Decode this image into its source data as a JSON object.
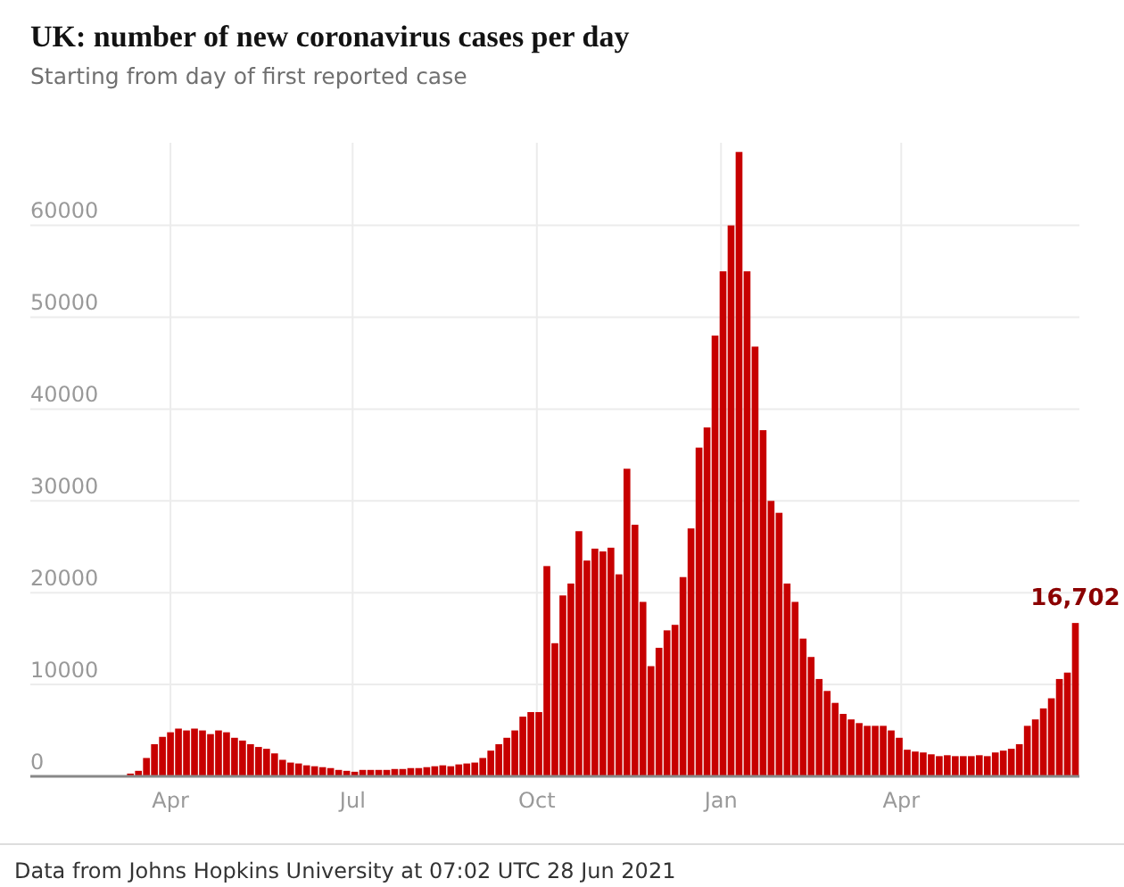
{
  "chart_data": {
    "type": "bar",
    "title": "UK: number of new coronavirus cases per day",
    "subtitle": "Starting from day of first reported case",
    "annotations": [
      {
        "text": "16,702",
        "x": "2021-06-27",
        "y": 16702
      },
      "Data from Johns Hopkins University at 07:02 UTC 28 Jun 2021"
    ],
    "x": [
      "2020-02-01",
      "2020-02-05",
      "2020-02-09",
      "2020-02-13",
      "2020-02-17",
      "2020-02-21",
      "2020-02-25",
      "2020-02-29",
      "2020-03-04",
      "2020-03-08",
      "2020-03-12",
      "2020-03-16",
      "2020-03-20",
      "2020-03-24",
      "2020-03-28",
      "2020-04-01",
      "2020-04-05",
      "2020-04-09",
      "2020-04-13",
      "2020-04-17",
      "2020-04-21",
      "2020-04-25",
      "2020-04-29",
      "2020-05-03",
      "2020-05-07",
      "2020-05-11",
      "2020-05-15",
      "2020-05-19",
      "2020-05-23",
      "2020-05-27",
      "2020-05-31",
      "2020-06-04",
      "2020-06-08",
      "2020-06-12",
      "2020-06-16",
      "2020-06-20",
      "2020-06-24",
      "2020-06-28",
      "2020-07-02",
      "2020-07-06",
      "2020-07-10",
      "2020-07-14",
      "2020-07-18",
      "2020-07-22",
      "2020-07-26",
      "2020-07-30",
      "2020-08-03",
      "2020-08-07",
      "2020-08-11",
      "2020-08-15",
      "2020-08-19",
      "2020-08-23",
      "2020-08-27",
      "2020-08-31",
      "2020-09-04",
      "2020-09-08",
      "2020-09-12",
      "2020-09-16",
      "2020-09-20",
      "2020-09-24",
      "2020-09-28",
      "2020-10-02",
      "2020-10-06",
      "2020-10-10",
      "2020-10-14",
      "2020-10-18",
      "2020-10-22",
      "2020-10-26",
      "2020-10-30",
      "2020-11-03",
      "2020-11-07",
      "2020-11-11",
      "2020-11-15",
      "2020-11-19",
      "2020-11-23",
      "2020-11-27",
      "2020-12-01",
      "2020-12-05",
      "2020-12-09",
      "2020-12-13",
      "2020-12-17",
      "2020-12-21",
      "2020-12-25",
      "2020-12-29",
      "2021-01-02",
      "2021-01-06",
      "2021-01-10",
      "2021-01-14",
      "2021-01-18",
      "2021-01-22",
      "2021-01-26",
      "2021-01-30",
      "2021-02-03",
      "2021-02-07",
      "2021-02-11",
      "2021-02-15",
      "2021-02-19",
      "2021-02-23",
      "2021-02-27",
      "2021-03-03",
      "2021-03-07",
      "2021-03-11",
      "2021-03-15",
      "2021-03-19",
      "2021-03-23",
      "2021-03-27",
      "2021-03-31",
      "2021-04-04",
      "2021-04-08",
      "2021-04-12",
      "2021-04-16",
      "2021-04-20",
      "2021-04-24",
      "2021-04-28",
      "2021-05-02",
      "2021-05-06",
      "2021-05-10",
      "2021-05-14",
      "2021-05-18",
      "2021-05-22",
      "2021-05-26",
      "2021-05-30",
      "2021-06-03",
      "2021-06-07",
      "2021-06-11",
      "2021-06-15",
      "2021-06-19",
      "2021-06-23",
      "2021-06-27"
    ],
    "values": [
      0,
      0,
      0,
      0,
      0,
      0,
      0,
      0,
      0,
      0,
      300,
      600,
      2000,
      3500,
      4300,
      4800,
      5200,
      5000,
      5200,
      5000,
      4600,
      5000,
      4800,
      4200,
      3900,
      3500,
      3200,
      3000,
      2500,
      1800,
      1500,
      1400,
      1200,
      1100,
      1000,
      900,
      700,
      600,
      500,
      700,
      700,
      700,
      700,
      800,
      800,
      900,
      900,
      1000,
      1100,
      1200,
      1100,
      1300,
      1400,
      1500,
      2000,
      2800,
      3500,
      4200,
      5000,
      6500,
      7000,
      7000,
      22900,
      14500,
      19700,
      21000,
      26700,
      23500,
      24800,
      24500,
      24900,
      22000,
      33500,
      27400,
      19000,
      12000,
      14000,
      15900,
      16500,
      21700,
      27000,
      35800,
      38000,
      48000,
      55000,
      60000,
      68000,
      55000,
      46800,
      37700,
      30000,
      28700,
      21000,
      19000,
      15000,
      13000,
      10600,
      9300,
      8000,
      6800,
      6200,
      5800,
      5500,
      5500,
      5500,
      5000,
      4200,
      2900,
      2700,
      2600,
      2400,
      2200,
      2300,
      2200,
      2200,
      2200,
      2300,
      2200,
      2600,
      2800,
      3000,
      3500,
      5500,
      6200,
      7400,
      8500,
      10600,
      11300,
      16702
    ],
    "color": "#c70000",
    "xlim": [
      "2020-01-22",
      "2021-06-29"
    ],
    "xticks": [
      {
        "value": "2020-04-01",
        "label": "Apr"
      },
      {
        "value": "2020-07-01",
        "label": "Jul"
      },
      {
        "value": "2020-10-01",
        "label": "Oct"
      },
      {
        "value": "2021-01-01",
        "label": "Jan"
      },
      {
        "value": "2021-04-01",
        "label": "Apr"
      }
    ],
    "ylim": [
      0,
      69000
    ],
    "yticks": [
      0,
      10000,
      20000,
      30000,
      40000,
      50000,
      60000
    ],
    "grid": true
  }
}
